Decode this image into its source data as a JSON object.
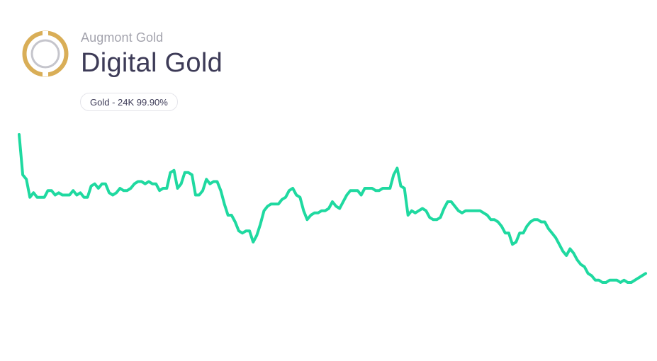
{
  "header": {
    "provider": "Augmont Gold",
    "product": "Digital Gold",
    "badge": "Gold - 24K 99.90%"
  },
  "colors": {
    "line": "#1fd9a0",
    "logo_ring": "#d9ae57",
    "logo_inner": "#c5c5cc",
    "title": "#3d3b57",
    "subtitle": "#a3a3ad"
  },
  "chart_data": {
    "type": "line",
    "values": [
      68,
      50,
      48,
      40,
      42,
      40,
      40,
      40,
      43,
      43,
      41,
      42,
      41,
      41,
      41,
      43,
      41,
      42,
      40,
      40,
      45,
      46,
      44,
      46,
      46,
      42,
      41,
      42,
      44,
      43,
      43,
      44,
      46,
      47,
      47,
      46,
      47,
      46,
      46,
      43,
      44,
      44,
      51,
      52,
      44,
      46,
      51,
      51,
      50,
      41,
      41,
      43,
      48,
      46,
      47,
      47,
      43,
      37,
      32,
      32,
      29,
      25,
      24,
      25,
      25,
      20,
      23,
      28,
      34,
      36,
      37,
      37,
      37,
      39,
      40,
      43,
      44,
      41,
      40,
      34,
      30,
      32,
      33,
      33,
      34,
      34,
      35,
      38,
      36,
      35,
      38,
      41,
      43,
      43,
      43,
      41,
      44,
      44,
      44,
      43,
      43,
      44,
      44,
      44,
      50,
      53,
      45,
      44,
      32,
      34,
      33,
      34,
      35,
      34,
      31,
      30,
      30,
      31,
      35,
      38,
      38,
      36,
      34,
      33,
      34,
      34,
      34,
      34,
      34,
      33,
      32,
      30,
      30,
      29,
      27,
      24,
      24,
      19,
      20,
      24,
      24,
      27,
      29,
      30,
      30,
      29,
      29,
      26,
      24,
      22,
      19,
      16,
      14,
      17,
      15,
      12,
      10,
      9,
      6,
      5,
      3,
      3,
      2,
      2,
      3,
      3,
      3,
      2,
      3,
      2,
      2,
      3,
      4,
      5,
      6
    ]
  }
}
